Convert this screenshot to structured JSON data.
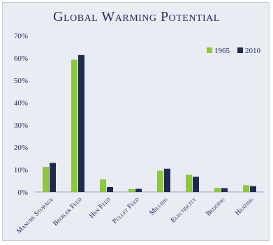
{
  "chart_data": {
    "type": "bar",
    "title": "Global Warming Potential",
    "categories": [
      "Manure Storage",
      "Broiler Feed",
      "Hen Feed",
      "Pullet Feed",
      "Milling",
      "Electricity",
      "Bedding",
      "Heating"
    ],
    "series": [
      {
        "name": "1965",
        "color": "#8dc63f",
        "values": [
          11.2,
          59.2,
          5.6,
          1.3,
          9.5,
          7.7,
          1.8,
          3.0
        ]
      },
      {
        "name": "2010",
        "color": "#1f2a52",
        "values": [
          13.0,
          61.3,
          2.2,
          1.4,
          10.4,
          6.8,
          1.7,
          2.6
        ]
      }
    ],
    "xlabel": "",
    "ylabel": "",
    "ylim": [
      0,
      70
    ],
    "yticks": [
      "0%",
      "10%",
      "20%",
      "30%",
      "40%",
      "50%",
      "60%",
      "70%"
    ],
    "grid": false,
    "legend": "top-right",
    "colors": {
      "background": "#e9ecf3",
      "title": "#1d2a5a",
      "axis_text": "#1d2a5a",
      "axis_line": "#9aa2b6"
    }
  }
}
